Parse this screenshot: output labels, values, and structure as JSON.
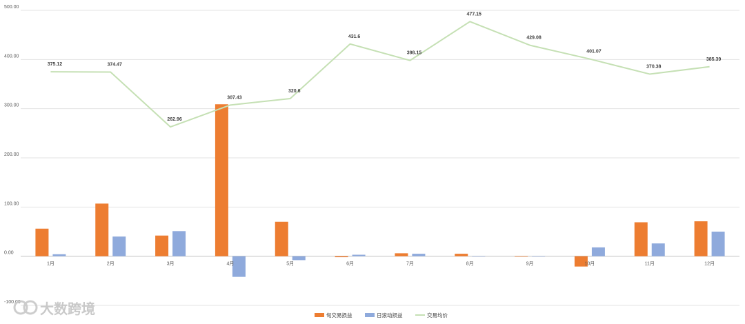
{
  "chart_data": {
    "type": "bar",
    "categories": [
      "1月",
      "2月",
      "3月",
      "4月",
      "5月",
      "6月",
      "7月",
      "8月",
      "9月",
      "10月",
      "11月",
      "12月"
    ],
    "series": [
      {
        "name": "旬交易损益",
        "type": "bar",
        "color": "#ED7D31",
        "values": [
          56,
          107,
          42,
          309,
          70,
          -2,
          6,
          5,
          -1,
          -21,
          69,
          71
        ]
      },
      {
        "name": "日滚动损益",
        "type": "bar",
        "color": "#8FAADC",
        "values": [
          4,
          40,
          51,
          -42,
          -8,
          3,
          5,
          0,
          0,
          18,
          26,
          50
        ]
      },
      {
        "name": "交易均价",
        "type": "line",
        "color": "#C5E0B4",
        "values": [
          375.12,
          374.47,
          262.96,
          307.43,
          320.6,
          431.6,
          398.15,
          477.15,
          429.08,
          401.07,
          370.38,
          385.39
        ],
        "labels": [
          "375.12",
          "374.47",
          "262.96",
          "307.43",
          "320.6",
          "431.6",
          "398.15",
          "477.15",
          "429.08",
          "401.07",
          "370.38",
          "385.39"
        ]
      }
    ],
    "ylim": [
      -100,
      500
    ],
    "yticks": [
      -100,
      0,
      100,
      200,
      300,
      400,
      500
    ],
    "ytick_labels": [
      "-100.00",
      "0.00",
      "100.00",
      "200.00",
      "300.00",
      "400.00",
      "500.00"
    ],
    "grid": true,
    "legend": "bottom-center"
  },
  "watermark": {
    "text": "大数跨境"
  }
}
